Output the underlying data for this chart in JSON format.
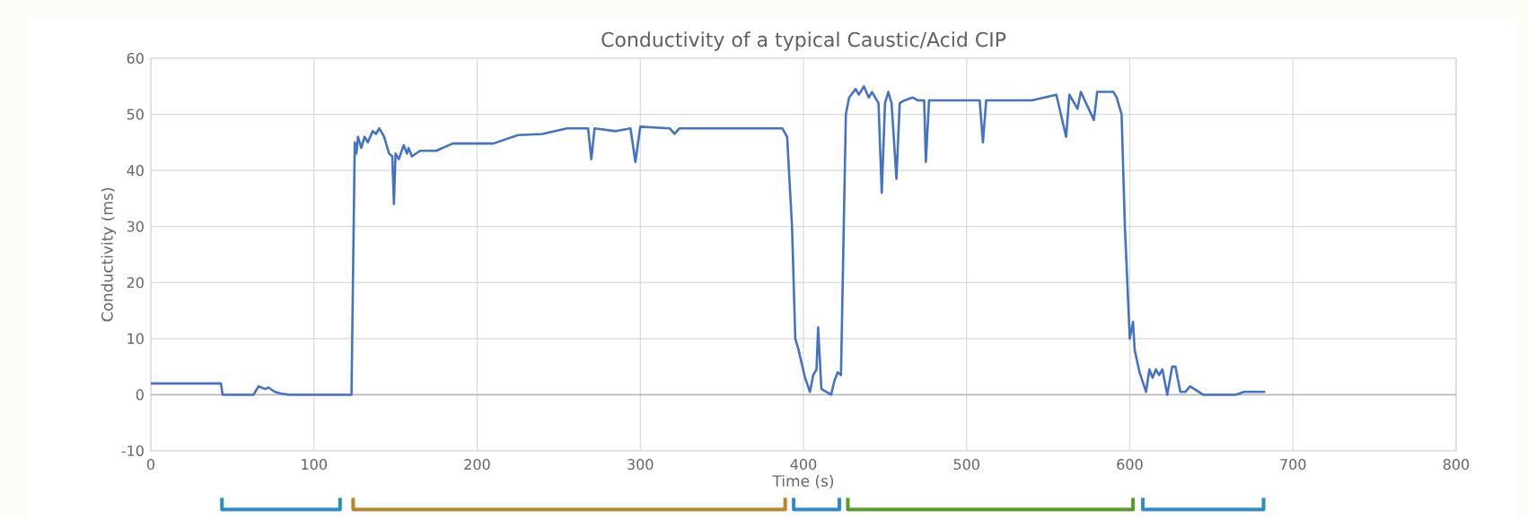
{
  "chart_data": {
    "type": "line",
    "title": "Conductivity of a typical Caustic/Acid CIP",
    "xlabel": "Time (s)",
    "ylabel": "Conductivity (ms)",
    "xlim": [
      0,
      800
    ],
    "xticks": [
      0,
      100,
      200,
      300,
      400,
      500,
      600,
      700,
      800
    ],
    "ylim": [
      -10,
      60
    ],
    "yticks": [
      -10,
      0,
      10,
      20,
      30,
      40,
      50,
      60
    ],
    "grid": true,
    "line_style": "solid",
    "series": [
      {
        "color": "#4472c4",
        "x": [
          0,
          43,
          44,
          63,
          66,
          70,
          72,
          76,
          80,
          85,
          123,
          125,
          126,
          127,
          129,
          131,
          133,
          136,
          138,
          140,
          143,
          146,
          148,
          149,
          150,
          152,
          155,
          157,
          158,
          160,
          165,
          175,
          185,
          210,
          225,
          240,
          255,
          268,
          270,
          272,
          285,
          294,
          297,
          300,
          318,
          321,
          324,
          387,
          390,
          393,
          395,
          397,
          401,
          404,
          406,
          408,
          409,
          411,
          417,
          419,
          421,
          423,
          426,
          428,
          432,
          434,
          437,
          440,
          442,
          446,
          448,
          450,
          452,
          454,
          457,
          459,
          462,
          467,
          470,
          474,
          475,
          477,
          508,
          510,
          512,
          540,
          555,
          561,
          563,
          568,
          570,
          578,
          580,
          590,
          592,
          595,
          597,
          600,
          602,
          603,
          606,
          610,
          612,
          614,
          616,
          618,
          620,
          623,
          626,
          628,
          631,
          634,
          637,
          645,
          665,
          670,
          683
        ],
        "values": [
          2,
          2,
          0,
          0,
          1.5,
          1,
          1.3,
          0.5,
          0.2,
          0,
          0,
          45,
          43,
          46,
          44,
          46,
          45,
          47,
          46.5,
          47.5,
          46,
          43,
          42.5,
          34,
          43,
          42,
          44.5,
          43,
          44,
          42.5,
          43.5,
          43.5,
          44.8,
          44.8,
          46.3,
          46.5,
          47.5,
          47.5,
          42,
          47.5,
          47,
          47.5,
          41.5,
          47.8,
          47.5,
          46.5,
          47.5,
          47.5,
          46,
          30,
          10,
          8,
          3,
          0.5,
          3.5,
          4.5,
          12,
          1,
          0,
          2.5,
          4,
          3.5,
          50,
          53,
          54.5,
          53.5,
          55,
          53,
          54,
          52,
          36,
          52,
          54,
          52,
          38.5,
          52,
          52.5,
          53,
          52.5,
          52.5,
          41.5,
          52.5,
          52.5,
          45,
          52.5,
          52.5,
          53.5,
          46,
          53.5,
          51,
          54,
          49,
          54,
          54,
          53,
          50,
          30,
          10,
          13,
          8,
          4,
          0.5,
          4.5,
          3,
          4.5,
          3.5,
          4.5,
          0,
          5,
          5,
          0.5,
          0.5,
          1.5,
          0,
          0,
          0.5,
          0.5
        ]
      }
    ]
  }
}
